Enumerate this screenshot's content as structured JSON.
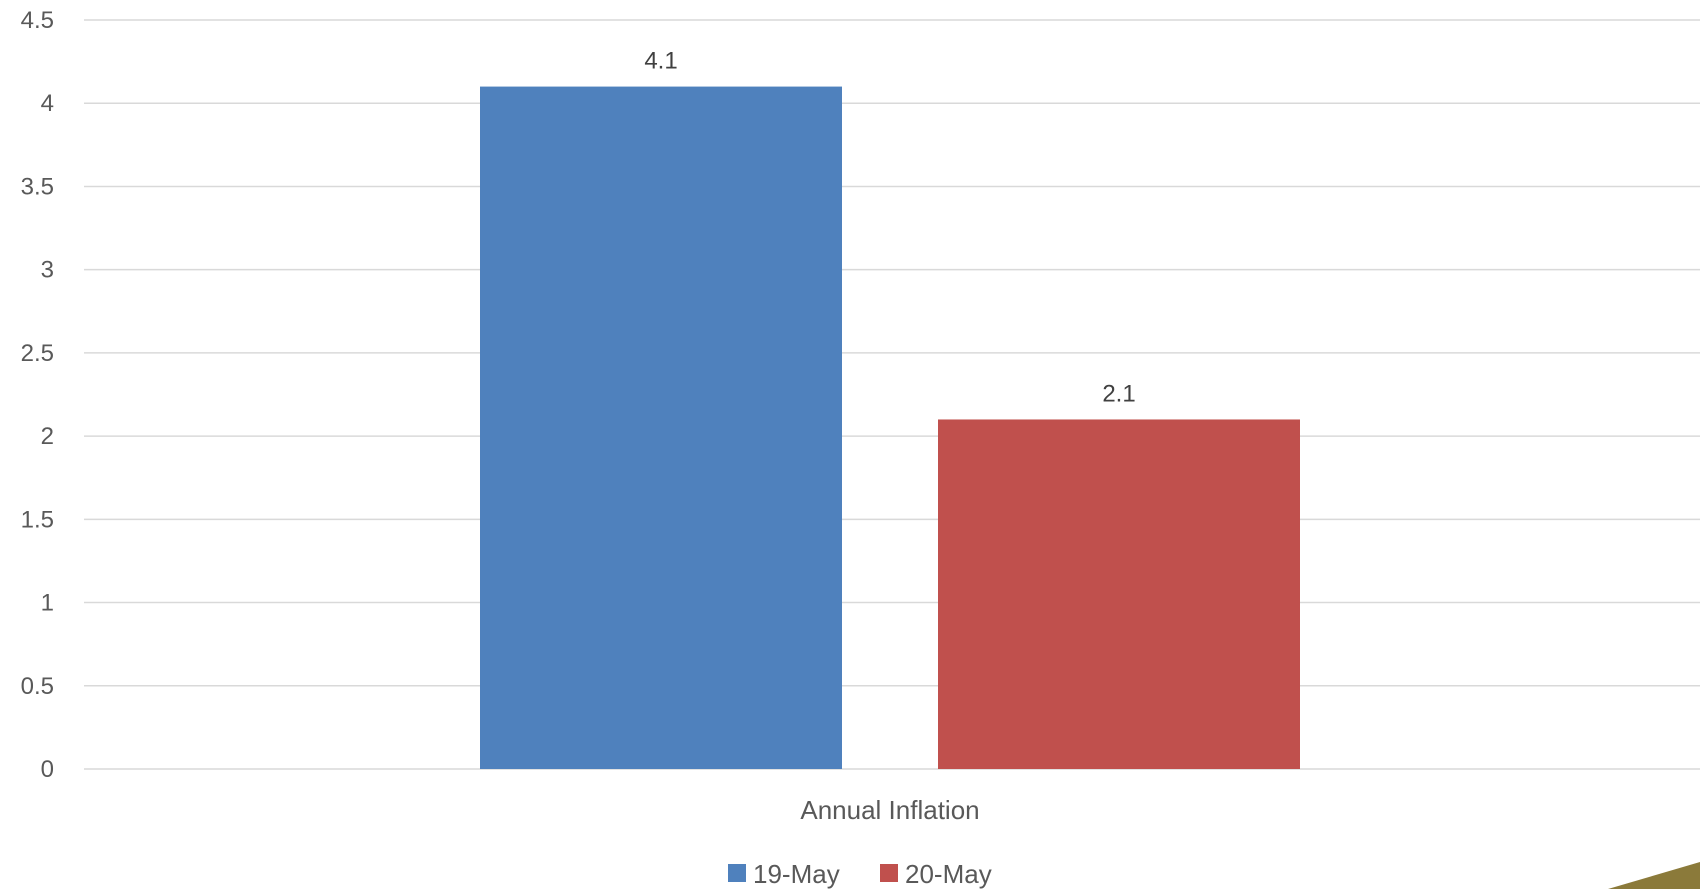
{
  "chart_data": {
    "type": "bar",
    "categories": [
      "Annual Inflation"
    ],
    "series": [
      {
        "name": "19-May",
        "values": [
          4.1
        ],
        "color": "#4f81bd"
      },
      {
        "name": "20-May",
        "values": [
          2.1
        ],
        "color": "#c0504d"
      }
    ],
    "title": "",
    "xlabel": "",
    "ylabel": "",
    "ylim": [
      0,
      4.5
    ],
    "yticks": [
      "0",
      "0.5",
      "1",
      "1.5",
      "2",
      "2.5",
      "3",
      "3.5",
      "4",
      "4.5"
    ],
    "data_labels": [
      "4.1",
      "2.1"
    ],
    "grid": true,
    "legend": "bottom",
    "gridline_color": "#d9d9d9",
    "corner_accent_color": "#8b7a3a"
  }
}
